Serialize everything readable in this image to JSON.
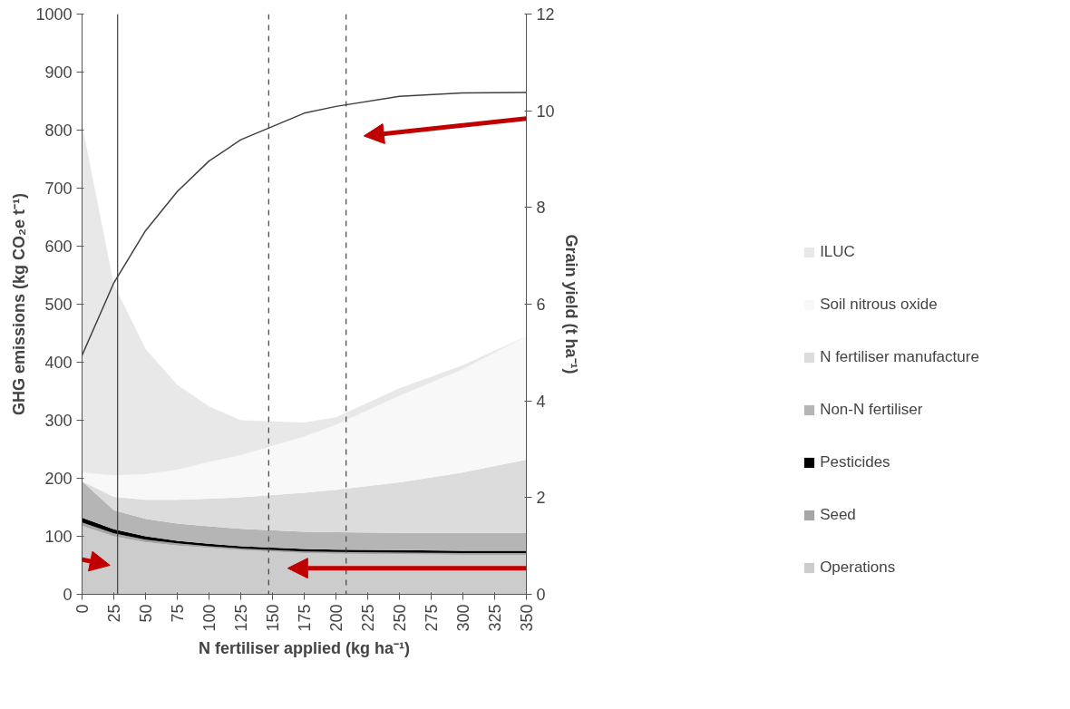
{
  "chart_data": {
    "type": "area",
    "stacked": true,
    "xlabel": "N fertiliser applied (kg ha⁻¹)",
    "ylabel": "GHG emissions (kg CO₂e t⁻¹)",
    "y2label": "Grain yield (t ha⁻¹)",
    "x": [
      0,
      25,
      50,
      75,
      100,
      125,
      175,
      200,
      250,
      300,
      350
    ],
    "xlim": [
      0,
      350
    ],
    "xticks": [
      0,
      25,
      50,
      75,
      100,
      125,
      150,
      175,
      200,
      225,
      250,
      275,
      300,
      325,
      350
    ],
    "ylim": [
      0,
      1000
    ],
    "yticks": [
      0,
      100,
      200,
      300,
      400,
      500,
      600,
      700,
      800,
      900,
      1000
    ],
    "y2lim": [
      0,
      12
    ],
    "y2ticks": [
      0,
      2,
      4,
      6,
      8,
      10,
      12
    ],
    "grid": false,
    "legend": "right",
    "series": [
      {
        "name": "Operations",
        "color": "#cccccc",
        "values": [
          118,
          100,
          90,
          84,
          80,
          76,
          71,
          70,
          69,
          68,
          68
        ]
      },
      {
        "name": "Seed",
        "color": "#a6a6a6",
        "values": [
          6,
          5,
          4,
          4,
          3,
          3,
          3,
          3,
          3,
          3,
          3
        ]
      },
      {
        "name": "Pesticides",
        "color": "#000000",
        "values": [
          8,
          7,
          6,
          4,
          4,
          4,
          4,
          4,
          4,
          4,
          4
        ]
      },
      {
        "name": "Non-N fertiliser",
        "color": "#b5b5b5",
        "values": [
          63,
          33,
          30,
          30,
          30,
          30,
          30,
          30,
          30,
          31,
          31
        ]
      },
      {
        "name": "N fertiliser manufacture",
        "color": "#dcdcdc",
        "values": [
          0,
          23,
          33,
          41,
          48,
          54,
          67,
          73,
          87,
          104,
          126
        ]
      },
      {
        "name": "Soil nitrous oxide",
        "color": "#f8f8f8",
        "values": [
          15,
          37,
          44,
          52,
          63,
          73,
          97,
          112,
          149,
          178,
          213
        ]
      },
      {
        "name": "ILUC",
        "color": "#e8e8e8",
        "values": [
          600,
          329,
          216,
          146,
          96,
          60,
          24,
          13,
          13,
          7,
          0
        ]
      },
      {
        "type": "line",
        "axis": "y2",
        "color": "#404040",
        "values": [
          4.94,
          6.44,
          7.52,
          8.33,
          8.96,
          9.4,
          9.95,
          10.09,
          10.3,
          10.37,
          10.38
        ]
      }
    ],
    "ref_lines": [
      {
        "axis": "x",
        "value": 28,
        "label": null,
        "line_style": "solid",
        "color": "#404040"
      },
      {
        "axis": "x",
        "value": 147,
        "label": null,
        "line_style": "dashed",
        "color": "#404040"
      },
      {
        "axis": "x",
        "value": 208,
        "label": null,
        "line_style": "dashed",
        "color": "#404040"
      }
    ]
  }
}
